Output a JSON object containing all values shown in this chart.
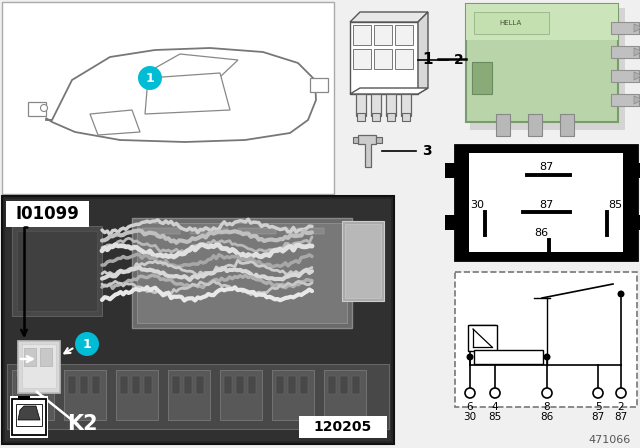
{
  "bg_color": "#f0f0f0",
  "figure_num": "471066",
  "relay_color_main": "#b8d4a8",
  "relay_color_light": "#cce4ba",
  "circle_color": "#00bcd4",
  "photo_label": "120205",
  "i01099_label": "I01099",
  "k2_label": "K2",
  "circuit_pins_row1": [
    "6",
    "4",
    "8",
    "5",
    "2"
  ],
  "circuit_pins_row2": [
    "30",
    "85",
    "86",
    "87",
    "87"
  ]
}
